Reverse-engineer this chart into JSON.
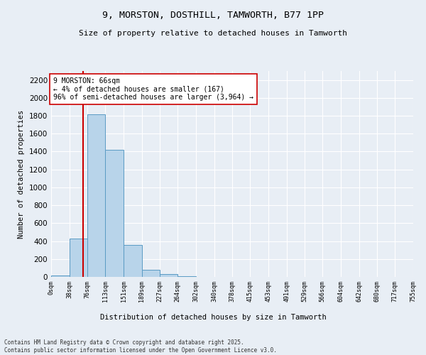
{
  "title_line1": "9, MORSTON, DOSTHILL, TAMWORTH, B77 1PP",
  "title_line2": "Size of property relative to detached houses in Tamworth",
  "xlabel": "Distribution of detached houses by size in Tamworth",
  "ylabel": "Number of detached properties",
  "bar_color": "#b8d4ea",
  "bar_edge_color": "#5a9bc4",
  "background_color": "#e8eef5",
  "grid_color": "#ffffff",
  "annotation_text": "9 MORSTON: 66sqm\n← 4% of detached houses are smaller (167)\n96% of semi-detached houses are larger (3,964) →",
  "vline_x": 66,
  "vline_color": "#cc0000",
  "annotation_box_color": "#ffffff",
  "annotation_box_edge": "#cc0000",
  "bins": [
    0,
    38,
    76,
    113,
    151,
    189,
    227,
    264,
    302,
    340,
    378,
    415,
    453,
    491,
    529,
    566,
    604,
    642,
    680,
    717,
    755
  ],
  "counts": [
    15,
    430,
    1820,
    1420,
    355,
    80,
    30,
    8,
    3,
    2,
    1,
    1,
    0,
    0,
    0,
    0,
    0,
    0,
    0,
    0
  ],
  "ylim": [
    0,
    2300
  ],
  "yticks": [
    0,
    200,
    400,
    600,
    800,
    1000,
    1200,
    1400,
    1600,
    1800,
    2000,
    2200
  ],
  "footer_line1": "Contains HM Land Registry data © Crown copyright and database right 2025.",
  "footer_line2": "Contains public sector information licensed under the Open Government Licence v3.0.",
  "tick_labels": [
    "0sqm",
    "38sqm",
    "76sqm",
    "113sqm",
    "151sqm",
    "189sqm",
    "227sqm",
    "264sqm",
    "302sqm",
    "340sqm",
    "378sqm",
    "415sqm",
    "453sqm",
    "491sqm",
    "529sqm",
    "566sqm",
    "604sqm",
    "642sqm",
    "680sqm",
    "717sqm",
    "755sqm"
  ]
}
